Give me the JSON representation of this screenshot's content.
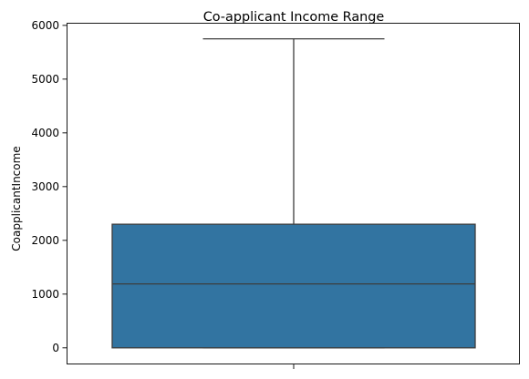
{
  "chart_data": {
    "type": "box",
    "title": "Co-applicant Income Range",
    "xlabel": "",
    "ylabel": "CoapplicantIncome",
    "ylim": [
      -300,
      6040
    ],
    "yticks": [
      0,
      1000,
      2000,
      3000,
      4000,
      5000,
      6000
    ],
    "box": {
      "min": 0,
      "q1": 0,
      "median": 1190,
      "q3": 2300,
      "max": 5750
    },
    "box_color": "#3274a1",
    "line_color": "#3d3d3d",
    "grid": false,
    "legend": "none"
  }
}
